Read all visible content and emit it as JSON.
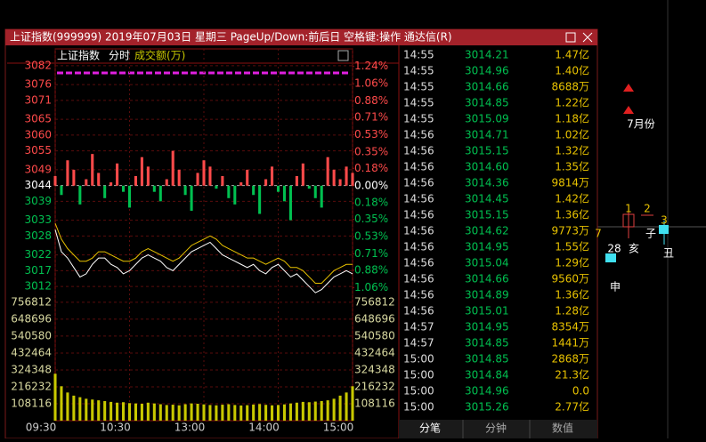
{
  "window": {
    "title": "上证指数(999999) 2019年07月03日 星期三 PageUp/Down:前后日 空格键:操作 通达信(R)"
  },
  "chart_data": {
    "type": "intraday",
    "name": "上证指数",
    "mode": "分时",
    "volume_label": "成交额(万)",
    "x": [
      0,
      5,
      10,
      15,
      20,
      25,
      30,
      35,
      40,
      45,
      50,
      55,
      60,
      65,
      70,
      75,
      80,
      85,
      90,
      95,
      100,
      105,
      110,
      115,
      120,
      125,
      130,
      135,
      140,
      145,
      150,
      155,
      160,
      165,
      170,
      175,
      180,
      185,
      190,
      195,
      200,
      205,
      210,
      215,
      220,
      225,
      230,
      235,
      240
    ],
    "xlim": [
      0,
      240
    ],
    "xticks": [
      {
        "value": 0,
        "label": "09:30"
      },
      {
        "value": 60,
        "label": "10:30"
      },
      {
        "value": 120,
        "label": "13:00"
      },
      {
        "value": 180,
        "label": "14:00"
      },
      {
        "value": 240,
        "label": "15:00"
      }
    ],
    "ylim": [
      3009.2,
      3084.5
    ],
    "yticks": [
      3082,
      3076,
      3071,
      3065,
      3060,
      3055,
      3049,
      3044,
      3039,
      3033,
      3028,
      3022,
      3017,
      3012
    ],
    "y2lim": [
      -1.14,
      1.33
    ],
    "y2ticks": [
      {
        "value": 1.24,
        "label": "1.24%"
      },
      {
        "value": 1.06,
        "label": "1.06%"
      },
      {
        "value": 0.88,
        "label": "0.88%"
      },
      {
        "value": 0.71,
        "label": "0.71%"
      },
      {
        "value": 0.53,
        "label": "0.53%"
      },
      {
        "value": 0.35,
        "label": "0.35%"
      },
      {
        "value": 0.18,
        "label": "0.18%"
      },
      {
        "value": 0,
        "label": "0.00%"
      },
      {
        "value": -0.18,
        "label": "0.18%"
      },
      {
        "value": -0.35,
        "label": "0.35%"
      },
      {
        "value": -0.53,
        "label": "0.53%"
      },
      {
        "value": -0.71,
        "label": "0.71%"
      },
      {
        "value": -0.88,
        "label": "0.88%"
      },
      {
        "value": -1.06,
        "label": "1.06%"
      }
    ],
    "price": {
      "color": "#ffffff",
      "values": [
        3030,
        3023,
        3021,
        3018,
        3015,
        3016,
        3019,
        3021,
        3021,
        3019,
        3018,
        3016,
        3017,
        3019,
        3021,
        3022,
        3021,
        3020,
        3018,
        3017,
        3019,
        3021,
        3023,
        3024,
        3025,
        3026,
        3024,
        3022,
        3021,
        3020,
        3019,
        3018,
        3019,
        3017,
        3016,
        3018,
        3019,
        3017,
        3015,
        3016,
        3014,
        3012,
        3010,
        3011,
        3013,
        3015,
        3016,
        3017,
        3016
      ]
    },
    "average": {
      "color": "#e8c200",
      "values": [
        3032,
        3027,
        3024,
        3022,
        3020,
        3020,
        3021,
        3023,
        3023,
        3022,
        3021,
        3020,
        3020,
        3021,
        3023,
        3024,
        3023,
        3022,
        3021,
        3020,
        3021,
        3023,
        3025,
        3026,
        3027,
        3028,
        3027,
        3025,
        3024,
        3023,
        3022,
        3021,
        3021,
        3020,
        3019,
        3020,
        3021,
        3020,
        3018,
        3018,
        3017,
        3015,
        3013,
        3013,
        3015,
        3017,
        3018,
        3019,
        3019
      ]
    },
    "breadth": {
      "up_color": "#ff4a4a",
      "down_color": "#00c050",
      "values": [
        3047,
        3041,
        3052,
        3049,
        3038,
        3046,
        3054,
        3048,
        3040,
        3045,
        3051,
        3042,
        3037,
        3047,
        3053,
        3050,
        3042,
        3039,
        3046,
        3055,
        3049,
        3041,
        3036,
        3048,
        3052,
        3050,
        3043,
        3047,
        3040,
        3038,
        3045,
        3049,
        3041,
        3035,
        3046,
        3050,
        3042,
        3039,
        3033,
        3047,
        3051,
        3043,
        3040,
        3037,
        3053,
        3049,
        3046,
        3050,
        3048
      ]
    },
    "volume": {
      "color": "#c8c800",
      "ylim": [
        0,
        796000
      ],
      "yticks": [
        756812,
        648696,
        540580,
        432464,
        324348,
        216232,
        108116
      ],
      "values": [
        300000,
        220000,
        180000,
        160000,
        150000,
        140000,
        135000,
        130000,
        125000,
        120000,
        115000,
        118000,
        112000,
        110000,
        108000,
        115000,
        110000,
        105000,
        100000,
        102000,
        98000,
        105000,
        110000,
        108000,
        104000,
        100000,
        98000,
        102000,
        105000,
        100000,
        97000,
        99000,
        103000,
        106000,
        101000,
        98000,
        100000,
        104000,
        110000,
        115000,
        120000,
        118000,
        122000,
        125000,
        130000,
        140000,
        160000,
        180000,
        220000
      ]
    },
    "grid": true
  },
  "trades": {
    "rows": [
      [
        "14:55",
        "3014.21",
        "1.47亿"
      ],
      [
        "14:55",
        "3014.96",
        "1.40亿"
      ],
      [
        "14:55",
        "3014.66",
        "8688万"
      ],
      [
        "14:55",
        "3014.85",
        "1.22亿"
      ],
      [
        "14:55",
        "3015.09",
        "1.18亿"
      ],
      [
        "14:56",
        "3014.71",
        "1.02亿"
      ],
      [
        "14:56",
        "3015.15",
        "1.32亿"
      ],
      [
        "14:56",
        "3014.60",
        "1.35亿"
      ],
      [
        "14:56",
        "3014.36",
        "9814万"
      ],
      [
        "14:56",
        "3014.45",
        "1.42亿"
      ],
      [
        "14:56",
        "3015.15",
        "1.36亿"
      ],
      [
        "14:56",
        "3014.62",
        "9773万"
      ],
      [
        "14:56",
        "3014.95",
        "1.55亿"
      ],
      [
        "14:56",
        "3015.04",
        "1.29亿"
      ],
      [
        "14:56",
        "3014.66",
        "9560万"
      ],
      [
        "14:56",
        "3014.89",
        "1.36亿"
      ],
      [
        "14:56",
        "3015.01",
        "1.28亿"
      ],
      [
        "14:57",
        "3014.95",
        "8354万"
      ],
      [
        "14:57",
        "3014.85",
        "1441万"
      ],
      [
        "15:00",
        "3014.85",
        "2868万"
      ],
      [
        "15:00",
        "3014.84",
        "21.3亿"
      ],
      [
        "15:00",
        "3014.96",
        "0.0"
      ],
      [
        "15:00",
        "3015.26",
        "2.77亿"
      ]
    ]
  },
  "tabs": [
    "分笔",
    "分钟",
    "数值"
  ],
  "background": {
    "labels": [
      "7月份",
      "1",
      "2",
      "3",
      "7",
      "28",
      "亥",
      "子",
      "丑",
      "申"
    ]
  }
}
